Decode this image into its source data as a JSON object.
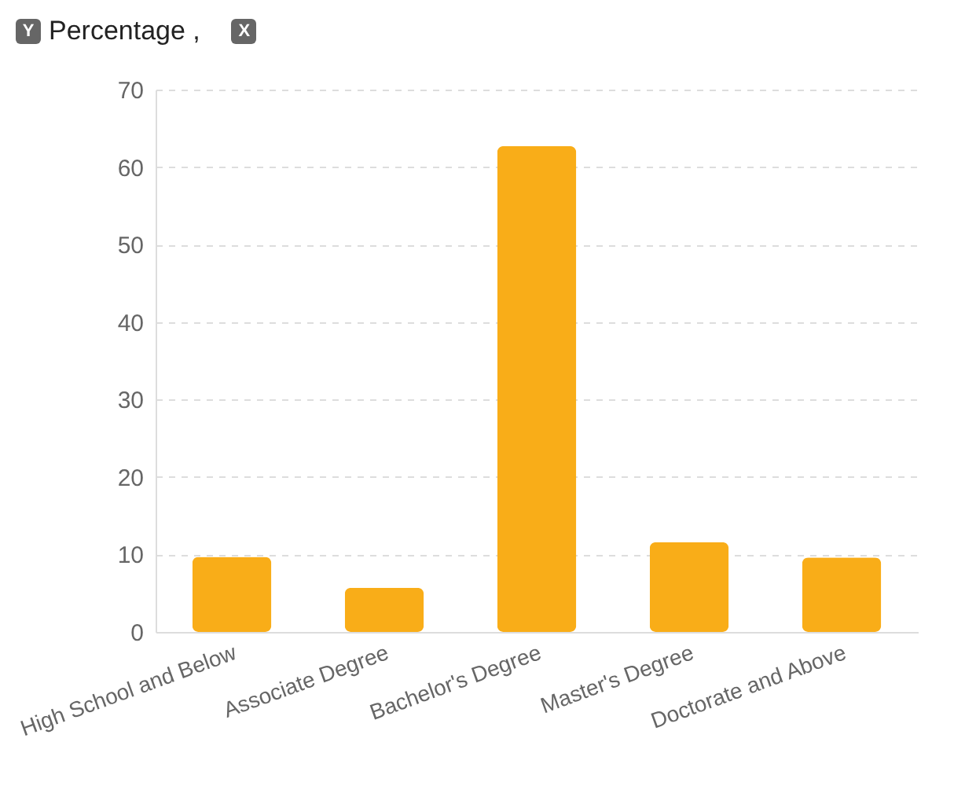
{
  "chart_data": {
    "type": "bar",
    "ylabel": "Percentage ,",
    "annotations": [
      "Y",
      "X"
    ],
    "categories": [
      "High School and Below",
      "Associate Degree",
      "Bachelor's Degree",
      "Master's Degree",
      "Doctorate and Above"
    ],
    "values": [
      9.7,
      5.7,
      62.7,
      11.6,
      9.6
    ],
    "color": "#f9ad18",
    "ylim": [
      0,
      70
    ],
    "yticks": [
      0,
      10,
      20,
      30,
      40,
      50,
      60,
      70
    ],
    "grid": "y"
  }
}
